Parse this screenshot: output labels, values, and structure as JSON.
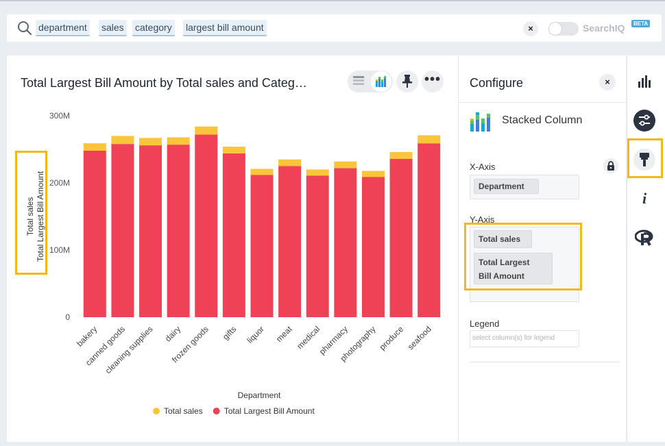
{
  "search": {
    "tokens": [
      "department",
      "sales",
      "category",
      "largest bill amount"
    ],
    "clear_label": "×",
    "searchiq_label": "SearchIQ",
    "beta_label": "BETA"
  },
  "chart_panel": {
    "title": "Total Largest Bill Amount by Total sales and Categ…",
    "more_label": "•••"
  },
  "chart_data": {
    "type": "bar",
    "stacked": true,
    "categories": [
      "bakery",
      "canned goods",
      "cleaning supplies",
      "dairy",
      "frozen goods",
      "gifts",
      "liquor",
      "meat",
      "medical",
      "pharmacy",
      "photography",
      "produce",
      "seafood"
    ],
    "series": [
      {
        "name": "Total Largest Bill Amount",
        "color": "#f04257",
        "values": [
          248000000,
          258000000,
          256000000,
          257000000,
          272000000,
          244000000,
          212000000,
          225000000,
          211000000,
          222000000,
          209000000,
          236000000,
          259000000
        ]
      },
      {
        "name": "Total sales",
        "color": "#fbc53b",
        "values": [
          11000000,
          12000000,
          11000000,
          11000000,
          12000000,
          10000000,
          9000000,
          10000000,
          9000000,
          10000000,
          9000000,
          10000000,
          12000000
        ]
      }
    ],
    "yticks": [
      "0",
      "100M",
      "200M",
      "300M"
    ],
    "ytick_values": [
      0,
      100000000,
      200000000,
      300000000
    ],
    "ylim": [
      0,
      300000000
    ],
    "xlabel": "Department",
    "ylabel_lines": [
      "Total sales",
      "Total Largest Bill Amount"
    ],
    "legend": [
      {
        "name": "Total sales",
        "color": "#fbc53b"
      },
      {
        "name": "Total Largest Bill Amount",
        "color": "#f04257"
      }
    ],
    "legend_position": "bottom"
  },
  "config": {
    "title": "Configure",
    "close_label": "×",
    "chart_type": "Stacked Column",
    "x_axis_label": "X-Axis",
    "x_axis_chips": [
      "Department"
    ],
    "y_axis_label": "Y-Axis",
    "y_axis_chips": [
      "Total sales",
      "Total Largest",
      "Bill Amount"
    ],
    "legend_label": "Legend",
    "legend_placeholder": "select column(s) for legend"
  },
  "rail": {
    "info_label": "i"
  },
  "colors": {
    "accent": "#f3b81a",
    "dark_icon": "#2c3442"
  }
}
